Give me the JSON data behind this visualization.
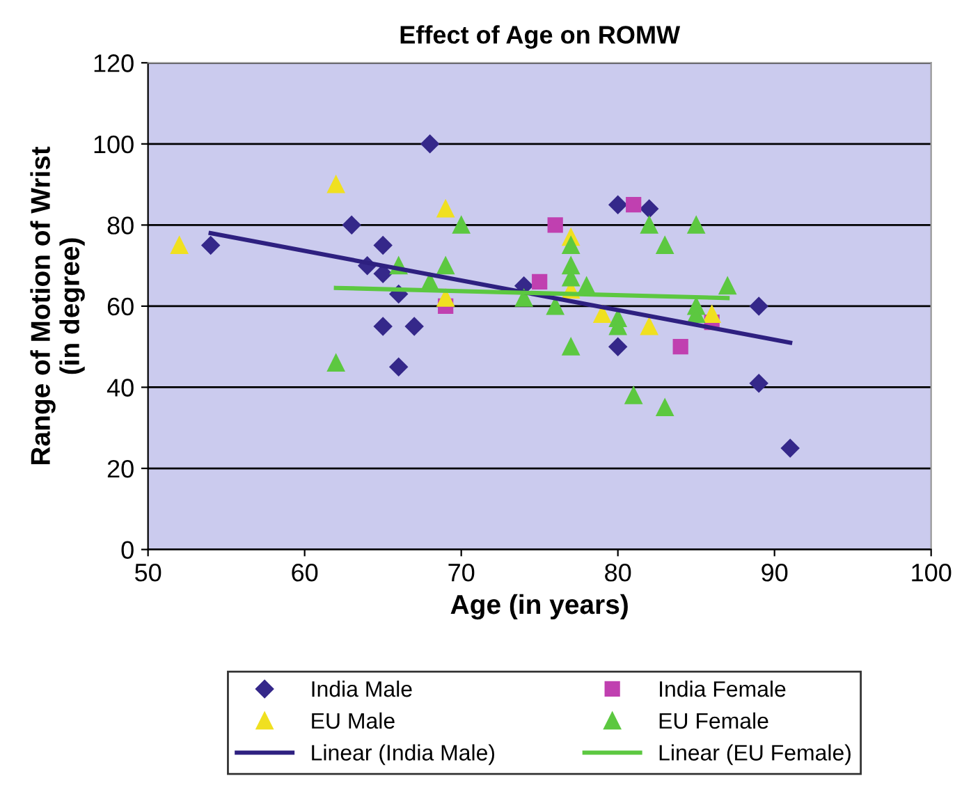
{
  "chart_data": {
    "type": "scatter",
    "title": "Effect of Age on ROMW",
    "xlabel": "Age (in years)",
    "ylabel": "Range of Motion of Wrist\n(in degree)",
    "xlim": [
      50,
      100
    ],
    "xticks": [
      50,
      60,
      70,
      80,
      90,
      100
    ],
    "ylim": [
      0,
      120
    ],
    "yticks": [
      0,
      20,
      40,
      60,
      80,
      100,
      120
    ],
    "grid": "y",
    "legend": "bottom",
    "series": [
      {
        "name": "India Male",
        "color": "#35288a",
        "marker": "diamond",
        "x": [
          54,
          63,
          64,
          65,
          65,
          65,
          66,
          66,
          67,
          68,
          74,
          80,
          80,
          82,
          89,
          89,
          91
        ],
        "values": [
          75,
          80,
          70,
          75,
          68,
          55,
          63,
          45,
          55,
          100,
          65,
          85,
          50,
          84,
          60,
          41,
          25
        ]
      },
      {
        "name": "India Female",
        "color": "#c040b0",
        "marker": "square",
        "x": [
          69,
          75,
          76,
          81,
          84,
          86
        ],
        "values": [
          60,
          66,
          80,
          85,
          50,
          56
        ]
      },
      {
        "name": "EU Male",
        "color": "#f0e020",
        "marker": "triangle",
        "x": [
          52,
          62,
          69,
          69,
          77,
          77,
          79,
          82,
          86
        ],
        "values": [
          75,
          90,
          84,
          62,
          77,
          64,
          58,
          55,
          58
        ]
      },
      {
        "name": "EU Female",
        "color": "#5cc840",
        "marker": "triangle",
        "x": [
          62,
          66,
          68,
          69,
          70,
          74,
          76,
          77,
          77,
          77,
          77,
          78,
          80,
          80,
          81,
          82,
          83,
          83,
          85,
          85,
          85,
          87
        ],
        "values": [
          46,
          70,
          66,
          70,
          80,
          62,
          60,
          75,
          70,
          67,
          50,
          65,
          57,
          55,
          38,
          80,
          75,
          35,
          80,
          60,
          58,
          65
        ]
      },
      {
        "name": "Linear (India Male)",
        "type": "line",
        "color": "#2e2080",
        "marker": "none",
        "x": [
          54,
          91
        ],
        "values": [
          78,
          51
        ]
      },
      {
        "name": "Linear (EU Female)",
        "type": "line",
        "color": "#5cc840",
        "marker": "none",
        "x": [
          62,
          87
        ],
        "values": [
          64.5,
          62
        ]
      }
    ]
  }
}
